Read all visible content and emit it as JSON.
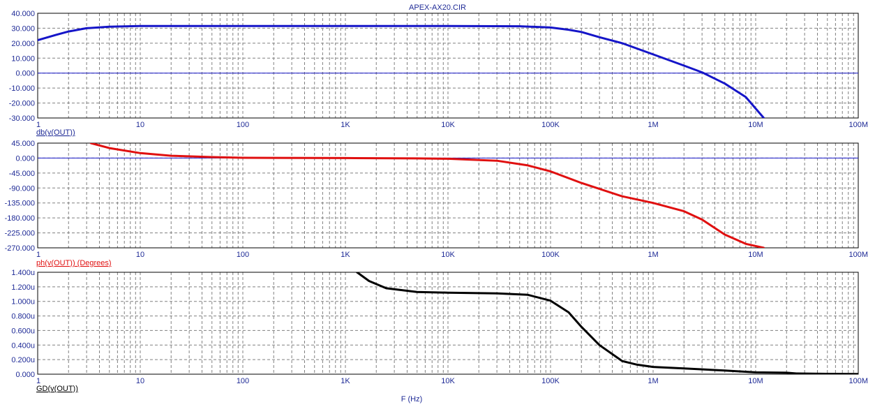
{
  "title": "APEX-AX20.CIR",
  "xlabel": "F (Hz)",
  "x_tick_labels": [
    "1",
    "10",
    "100",
    "1K",
    "10K",
    "100K",
    "1M",
    "10M",
    "100M"
  ],
  "colors": {
    "axis_text": "#1e2a96",
    "grid": "#808080",
    "magnitude": "#1515c8",
    "phase": "#e01010",
    "group_delay": "#000000",
    "zero_line": "#1515c8"
  },
  "chart_data": [
    {
      "type": "line",
      "name": "magnitude",
      "x_scale": "log",
      "xlim": [
        1,
        100000000
      ],
      "ylim": [
        -30,
        40
      ],
      "y_ticks": [
        "40.000",
        "30.000",
        "20.000",
        "10.000",
        "0.000",
        "-10.000",
        "-20.000",
        "-30.000"
      ],
      "ylabel": "db(v(OUT))",
      "grid": true,
      "series": [
        {
          "x": [
            1,
            1.5,
            2,
            3,
            5,
            10,
            100,
            1000,
            10000,
            50000,
            100000,
            150000,
            200000,
            300000,
            500000,
            1000000,
            2000000,
            3000000,
            5000000,
            8000000,
            12000000
          ],
          "y": [
            22,
            25.5,
            27.8,
            30,
            31,
            31.5,
            31.5,
            31.5,
            31.5,
            31.3,
            30.5,
            29,
            27.5,
            24,
            20,
            12.5,
            5,
            0.5,
            -7,
            -16,
            -30
          ]
        }
      ]
    },
    {
      "type": "line",
      "name": "phase",
      "x_scale": "log",
      "xlim": [
        1,
        100000000
      ],
      "ylim": [
        -270,
        45
      ],
      "y_ticks": [
        "45.000",
        "0.000",
        "-45.000",
        "-90.000",
        "-135.000",
        "-180.000",
        "-225.000",
        "-270.000"
      ],
      "ylabel": "ph(v(OUT)) (Degrees)",
      "grid": true,
      "series": [
        {
          "x": [
            3.3,
            5,
            10,
            20,
            50,
            100,
            1000,
            5000,
            10000,
            30000,
            60000,
            100000,
            200000,
            500000,
            1000000,
            2000000,
            3000000,
            5000000,
            8000000,
            12000000
          ],
          "y": [
            45,
            30,
            15,
            7,
            3,
            1,
            0,
            -1,
            -2,
            -8,
            -22,
            -40,
            -75,
            -115,
            -135,
            -160,
            -185,
            -230,
            -258,
            -270
          ]
        }
      ]
    },
    {
      "type": "line",
      "name": "group-delay",
      "x_scale": "log",
      "xlim": [
        1,
        100000000
      ],
      "ylim": [
        0,
        1.4
      ],
      "y_ticks": [
        "1.400u",
        "1.200u",
        "1.000u",
        "0.800u",
        "0.600u",
        "0.400u",
        "0.200u",
        "0.000"
      ],
      "ylabel": "GD(v(OUT))",
      "grid": true,
      "series": [
        {
          "x": [
            1300,
            1700,
            2500,
            5000,
            10000,
            30000,
            60000,
            100000,
            150000,
            200000,
            300000,
            500000,
            700000,
            1000000,
            2000000,
            5000000,
            10000000,
            20000000,
            25000000,
            50000000,
            100000000
          ],
          "y": [
            1.4,
            1.28,
            1.18,
            1.13,
            1.12,
            1.11,
            1.09,
            1.01,
            0.85,
            0.65,
            0.4,
            0.18,
            0.13,
            0.1,
            0.08,
            0.05,
            0.025,
            0.02,
            0.01,
            0.005,
            0.003
          ]
        }
      ]
    }
  ]
}
